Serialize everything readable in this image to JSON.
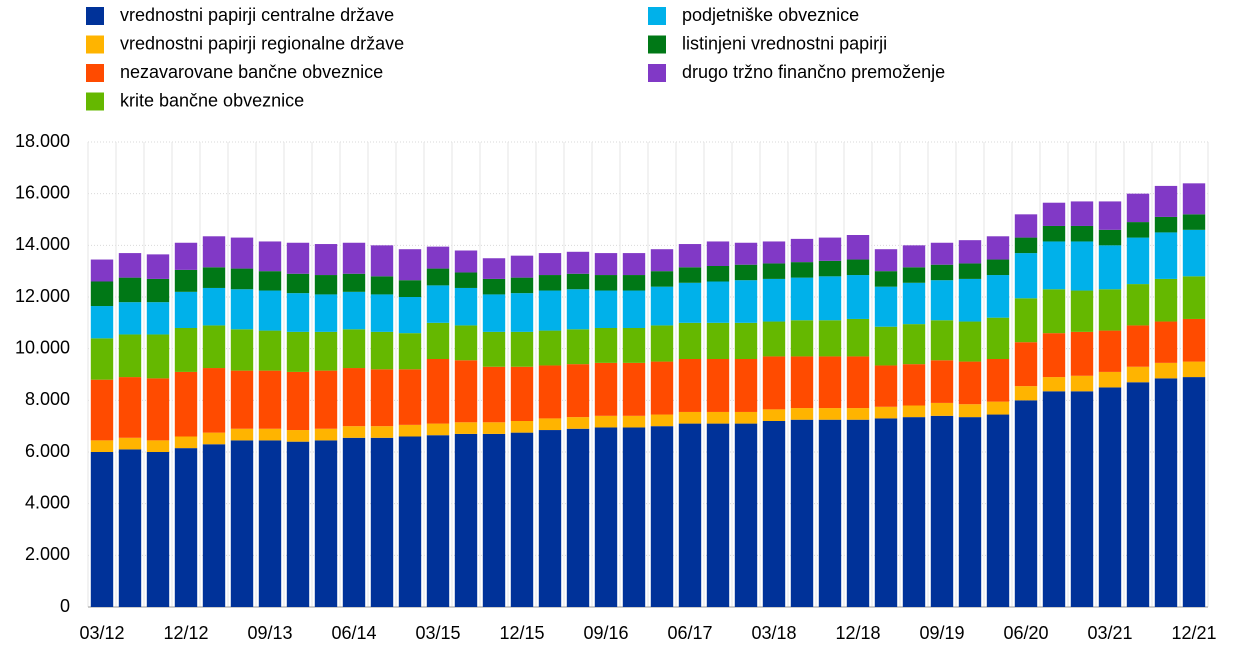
{
  "chart_data": {
    "type": "stacked-bar",
    "categories": [
      "03/12",
      null,
      null,
      "12/12",
      null,
      null,
      "09/13",
      null,
      null,
      "06/14",
      null,
      null,
      "03/15",
      null,
      null,
      "12/15",
      null,
      null,
      "09/16",
      null,
      null,
      "06/17",
      null,
      null,
      "03/18",
      null,
      null,
      "12/18",
      null,
      null,
      "09/19",
      null,
      null,
      "06/20",
      null,
      null,
      "03/21",
      null,
      null,
      "12/21"
    ],
    "ylim": [
      0,
      18000
    ],
    "yticks": [
      0,
      {
        "value": 2000,
        "label": "2.000"
      },
      {
        "value": 4000,
        "label": "4.000"
      },
      {
        "value": 6000,
        "label": "6.000"
      },
      {
        "value": 8000,
        "label": "8.000"
      },
      {
        "value": 10000,
        "label": "10.000"
      },
      {
        "value": 12000,
        "label": "12.000"
      },
      {
        "value": 14000,
        "label": "14.000"
      },
      {
        "value": 16000,
        "label": "16.000"
      },
      {
        "value": 18000,
        "label": "18.000"
      }
    ],
    "grid": true,
    "series": [
      {
        "name": "vrednostni papirji centralne države",
        "color": "#003299",
        "values": [
          6000,
          6100,
          6000,
          6150,
          6300,
          6450,
          6450,
          6400,
          6450,
          6550,
          6550,
          6600,
          6650,
          6700,
          6700,
          6750,
          6850,
          6900,
          6950,
          6950,
          7000,
          7100,
          7100,
          7100,
          7200,
          7250,
          7250,
          7250,
          7300,
          7350,
          7400,
          7350,
          7450,
          8000,
          8350,
          8350,
          8500,
          8700,
          8850,
          8900
        ]
      },
      {
        "name": "vrednostni papirji regionalne države",
        "color": "#ffb400",
        "values": [
          450,
          450,
          450,
          450,
          450,
          450,
          450,
          450,
          450,
          450,
          450,
          450,
          450,
          450,
          450,
          450,
          450,
          450,
          450,
          450,
          450,
          450,
          450,
          450,
          450,
          450,
          450,
          450,
          450,
          450,
          500,
          500,
          500,
          550,
          550,
          600,
          600,
          600,
          600,
          600
        ]
      },
      {
        "name": "nezavarovane bančne obveznice",
        "color": "#ff4b00",
        "values": [
          2350,
          2350,
          2400,
          2500,
          2500,
          2250,
          2250,
          2250,
          2250,
          2250,
          2200,
          2150,
          2500,
          2400,
          2150,
          2100,
          2050,
          2050,
          2050,
          2050,
          2050,
          2050,
          2050,
          2050,
          2050,
          2000,
          2000,
          2000,
          1600,
          1600,
          1650,
          1650,
          1650,
          1700,
          1700,
          1700,
          1600,
          1600,
          1600,
          1650
        ]
      },
      {
        "name": "krite bančne obveznice",
        "color": "#65b800",
        "values": [
          1600,
          1650,
          1700,
          1700,
          1650,
          1600,
          1550,
          1550,
          1500,
          1500,
          1450,
          1400,
          1400,
          1350,
          1350,
          1350,
          1350,
          1350,
          1350,
          1350,
          1400,
          1400,
          1400,
          1400,
          1350,
          1400,
          1400,
          1450,
          1500,
          1550,
          1550,
          1550,
          1600,
          1700,
          1700,
          1600,
          1600,
          1600,
          1650,
          1650
        ]
      },
      {
        "name": "podjetniške obveznice",
        "color": "#00b1ea",
        "values": [
          1250,
          1250,
          1250,
          1400,
          1450,
          1550,
          1550,
          1500,
          1450,
          1450,
          1450,
          1400,
          1450,
          1450,
          1450,
          1500,
          1550,
          1550,
          1450,
          1450,
          1500,
          1550,
          1600,
          1650,
          1650,
          1650,
          1700,
          1700,
          1550,
          1600,
          1550,
          1650,
          1650,
          1750,
          1850,
          1900,
          1700,
          1800,
          1800,
          1800
        ]
      },
      {
        "name": "listinjeni vrednostni papirji",
        "color": "#007816",
        "values": [
          950,
          950,
          900,
          850,
          800,
          800,
          750,
          750,
          750,
          700,
          700,
          650,
          650,
          600,
          600,
          600,
          600,
          600,
          600,
          600,
          600,
          600,
          600,
          600,
          600,
          600,
          600,
          600,
          600,
          600,
          600,
          600,
          600,
          600,
          600,
          600,
          600,
          600,
          600,
          600
        ]
      },
      {
        "name": "drugo tržno finančno premoženje",
        "color": "#8139c6",
        "values": [
          850,
          950,
          950,
          1050,
          1200,
          1200,
          1150,
          1200,
          1200,
          1200,
          1200,
          1200,
          850,
          850,
          800,
          850,
          850,
          850,
          850,
          850,
          850,
          900,
          950,
          850,
          850,
          900,
          900,
          950,
          850,
          850,
          850,
          900,
          900,
          900,
          900,
          950,
          1100,
          1100,
          1200,
          1200
        ]
      }
    ]
  }
}
